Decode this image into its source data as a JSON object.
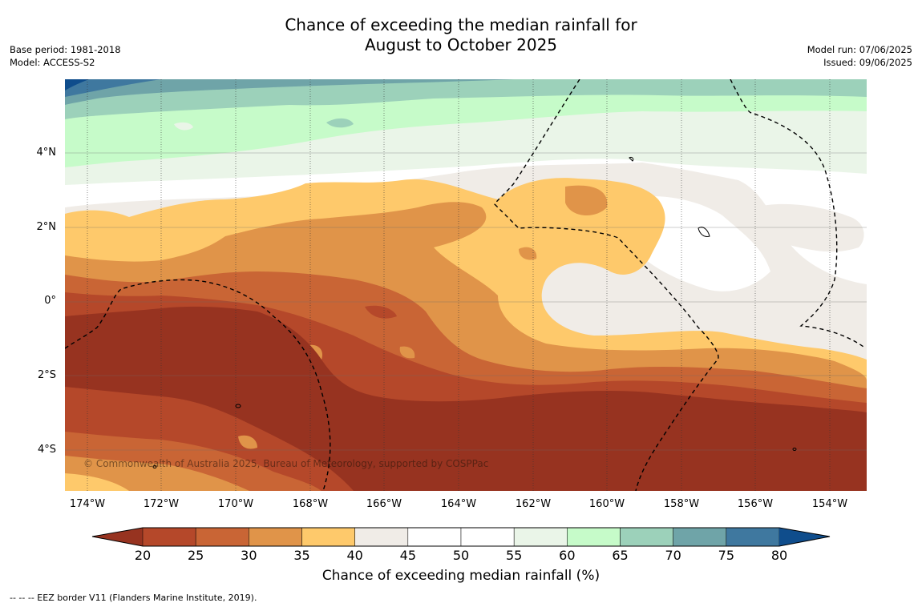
{
  "title": {
    "line1": "Chance of exceeding the median rainfall for",
    "line2": "August to October 2025"
  },
  "meta_left": {
    "base_period": "Base period: 1981-2018",
    "model": "Model: ACCESS-S2"
  },
  "meta_right": {
    "model_run": "Model run: 07/06/2025",
    "issued": "Issued: 09/06/2025"
  },
  "map": {
    "copyright": "© Commonwealth of Australia 2025, Bureau of Meteorology, supported by COSPPac",
    "lat_labels": [
      "4°N",
      "2°N",
      "0°",
      "2°S",
      "4°S"
    ],
    "lon_labels": [
      "174°W",
      "172°W",
      "170°W",
      "168°W",
      "166°W",
      "164°W",
      "162°W",
      "160°W",
      "158°W",
      "156°W",
      "154°W"
    ]
  },
  "colorbar": {
    "ticks": [
      "20",
      "25",
      "30",
      "35",
      "40",
      "45",
      "50",
      "55",
      "60",
      "65",
      "70",
      "75",
      "80"
    ],
    "colors": [
      "#973320",
      "#b5482a",
      "#c96535",
      "#e09449",
      "#fec96b",
      "#f0ece7",
      "#ffffff",
      "#ffffff",
      "#eaf5e8",
      "#c6fbc9",
      "#9cd1ba",
      "#6fa4a8",
      "#3f789f",
      "#0f4d8c"
    ],
    "label": "Chance of exceeding median rainfall (%)"
  },
  "footnote": "-- -- -- EEZ border V11 (Flanders Marine Institute, 2019)."
}
